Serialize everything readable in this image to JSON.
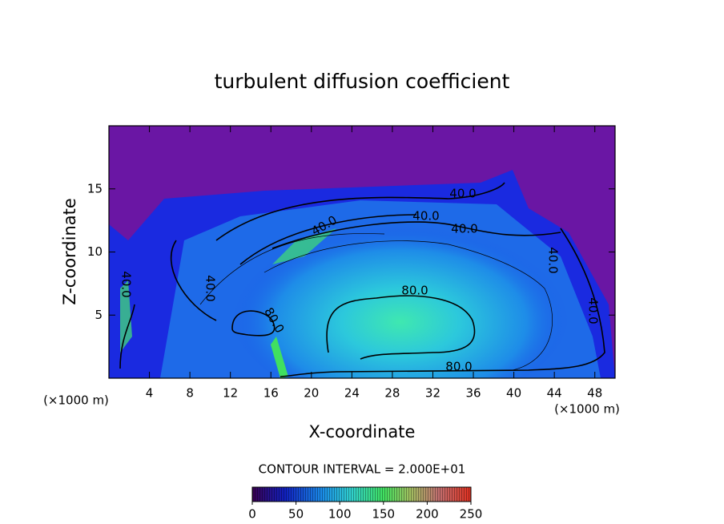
{
  "chart_data": {
    "type": "contour",
    "title": "turbulent diffusion coefficient",
    "xlabel": "X-coordinate",
    "ylabel": "Z-coordinate",
    "xlabel_unit": "(×1000 m)",
    "ylabel_unit": "(×1000 m)",
    "xlim": [
      0,
      50
    ],
    "xticks": [
      4,
      8,
      12,
      16,
      20,
      24,
      28,
      32,
      36,
      40,
      44,
      48
    ],
    "ylim": [
      0,
      20
    ],
    "yticks": [
      5,
      10,
      15
    ],
    "contour_interval": "CONTOUR INTERVAL = 2.000E+01",
    "contour_labels": [
      {
        "value": 40,
        "label": "40.0"
      },
      {
        "value": 40,
        "label": "40.0"
      },
      {
        "value": 40,
        "label": "40.0"
      },
      {
        "value": 40,
        "label": "40.0"
      },
      {
        "value": 80,
        "label": "80.0"
      },
      {
        "value": 80,
        "label": "80.0"
      },
      {
        "value": 80,
        "label": "80.0"
      },
      {
        "value": 40,
        "label": "40.0"
      },
      {
        "value": 40,
        "label": "40.0"
      },
      {
        "value": 40,
        "label": "40.0"
      },
      {
        "value": 40,
        "label": "40.0"
      }
    ],
    "colorbar_lim": [
      0,
      250
    ],
    "colorbar_ticks": [
      0,
      50,
      100,
      150,
      200,
      250
    ]
  }
}
